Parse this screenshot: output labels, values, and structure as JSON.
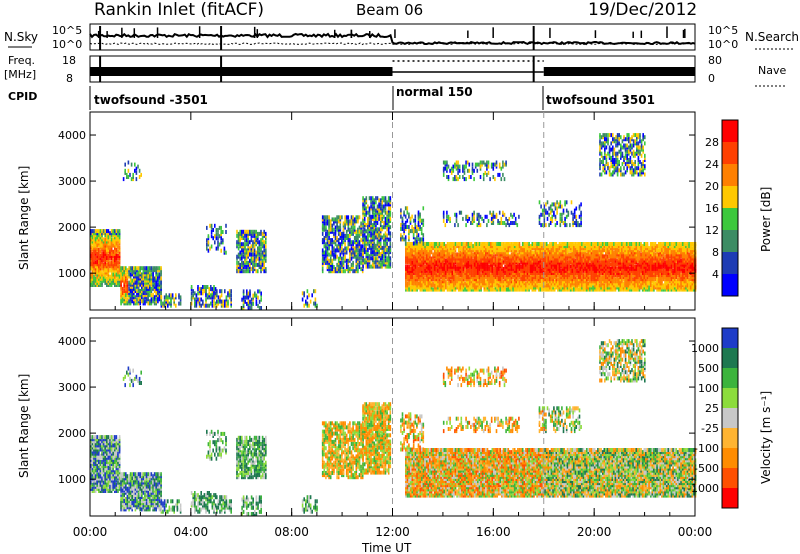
{
  "header": {
    "title": "Rankin Inlet (fitACF)",
    "beam": "Beam 06",
    "date": "19/Dec/2012"
  },
  "top_panels": {
    "nsky_label": "N.Sky",
    "nsky_ticks": [
      "10^5",
      "10^0"
    ],
    "nsearch_ticks": [
      "10^5",
      "10^0"
    ],
    "nsearch_label": "N.Search",
    "freq_label_1": "Freq.",
    "freq_label_2": "[MHz]",
    "freq_ticks": [
      "18",
      "8"
    ],
    "nave_ticks": [
      "80",
      "0"
    ],
    "nave_label": "Nave",
    "cpid_label": "CPID",
    "cpid_segments": [
      {
        "label": "twofsound -3501",
        "start_hour": 0
      },
      {
        "label": "normal 150",
        "start_hour": 12
      },
      {
        "label": "twofsound 3501",
        "start_hour": 18
      }
    ]
  },
  "chart_data": [
    {
      "type": "heatmap",
      "name": "power",
      "ylabel": "Slant Range [km]",
      "y_ticks": [
        "1000",
        "2000",
        "3000",
        "4000"
      ],
      "ylim": [
        200,
        4500
      ],
      "xlim": [
        0,
        24
      ],
      "colorbar_label": "Power [dB]",
      "colorbar_ticks": [
        "28",
        "24",
        "20",
        "16",
        "12",
        "8",
        "4"
      ],
      "colorbar_colors": [
        "#ff0000",
        "#ff4000",
        "#ff8000",
        "#ffc800",
        "#3cc83c",
        "#3c8c64",
        "#1e3cb4",
        "#0000ff"
      ]
    },
    {
      "type": "heatmap",
      "name": "velocity",
      "ylabel": "Slant Range [km]",
      "y_ticks": [
        "1000",
        "2000",
        "3000",
        "4000"
      ],
      "ylim": [
        200,
        4500
      ],
      "xlim": [
        0,
        24
      ],
      "colorbar_label": "Velocity [m s⁻¹]",
      "colorbar_ticks": [
        "1000",
        "500",
        "100",
        "25",
        "-25",
        "-100",
        "-500",
        "-1000"
      ],
      "colorbar_colors": [
        "#1e3cc8",
        "#1e7850",
        "#3cb43c",
        "#8cdc3c",
        "#c8c8c8",
        "#ffb432",
        "#ff8c00",
        "#ff5000",
        "#ff0000"
      ]
    }
  ],
  "x_axis": {
    "ticks": [
      "00:00",
      "04:00",
      "08:00",
      "12:00",
      "16:00",
      "20:00",
      "00:00"
    ],
    "label": "Time UT"
  }
}
